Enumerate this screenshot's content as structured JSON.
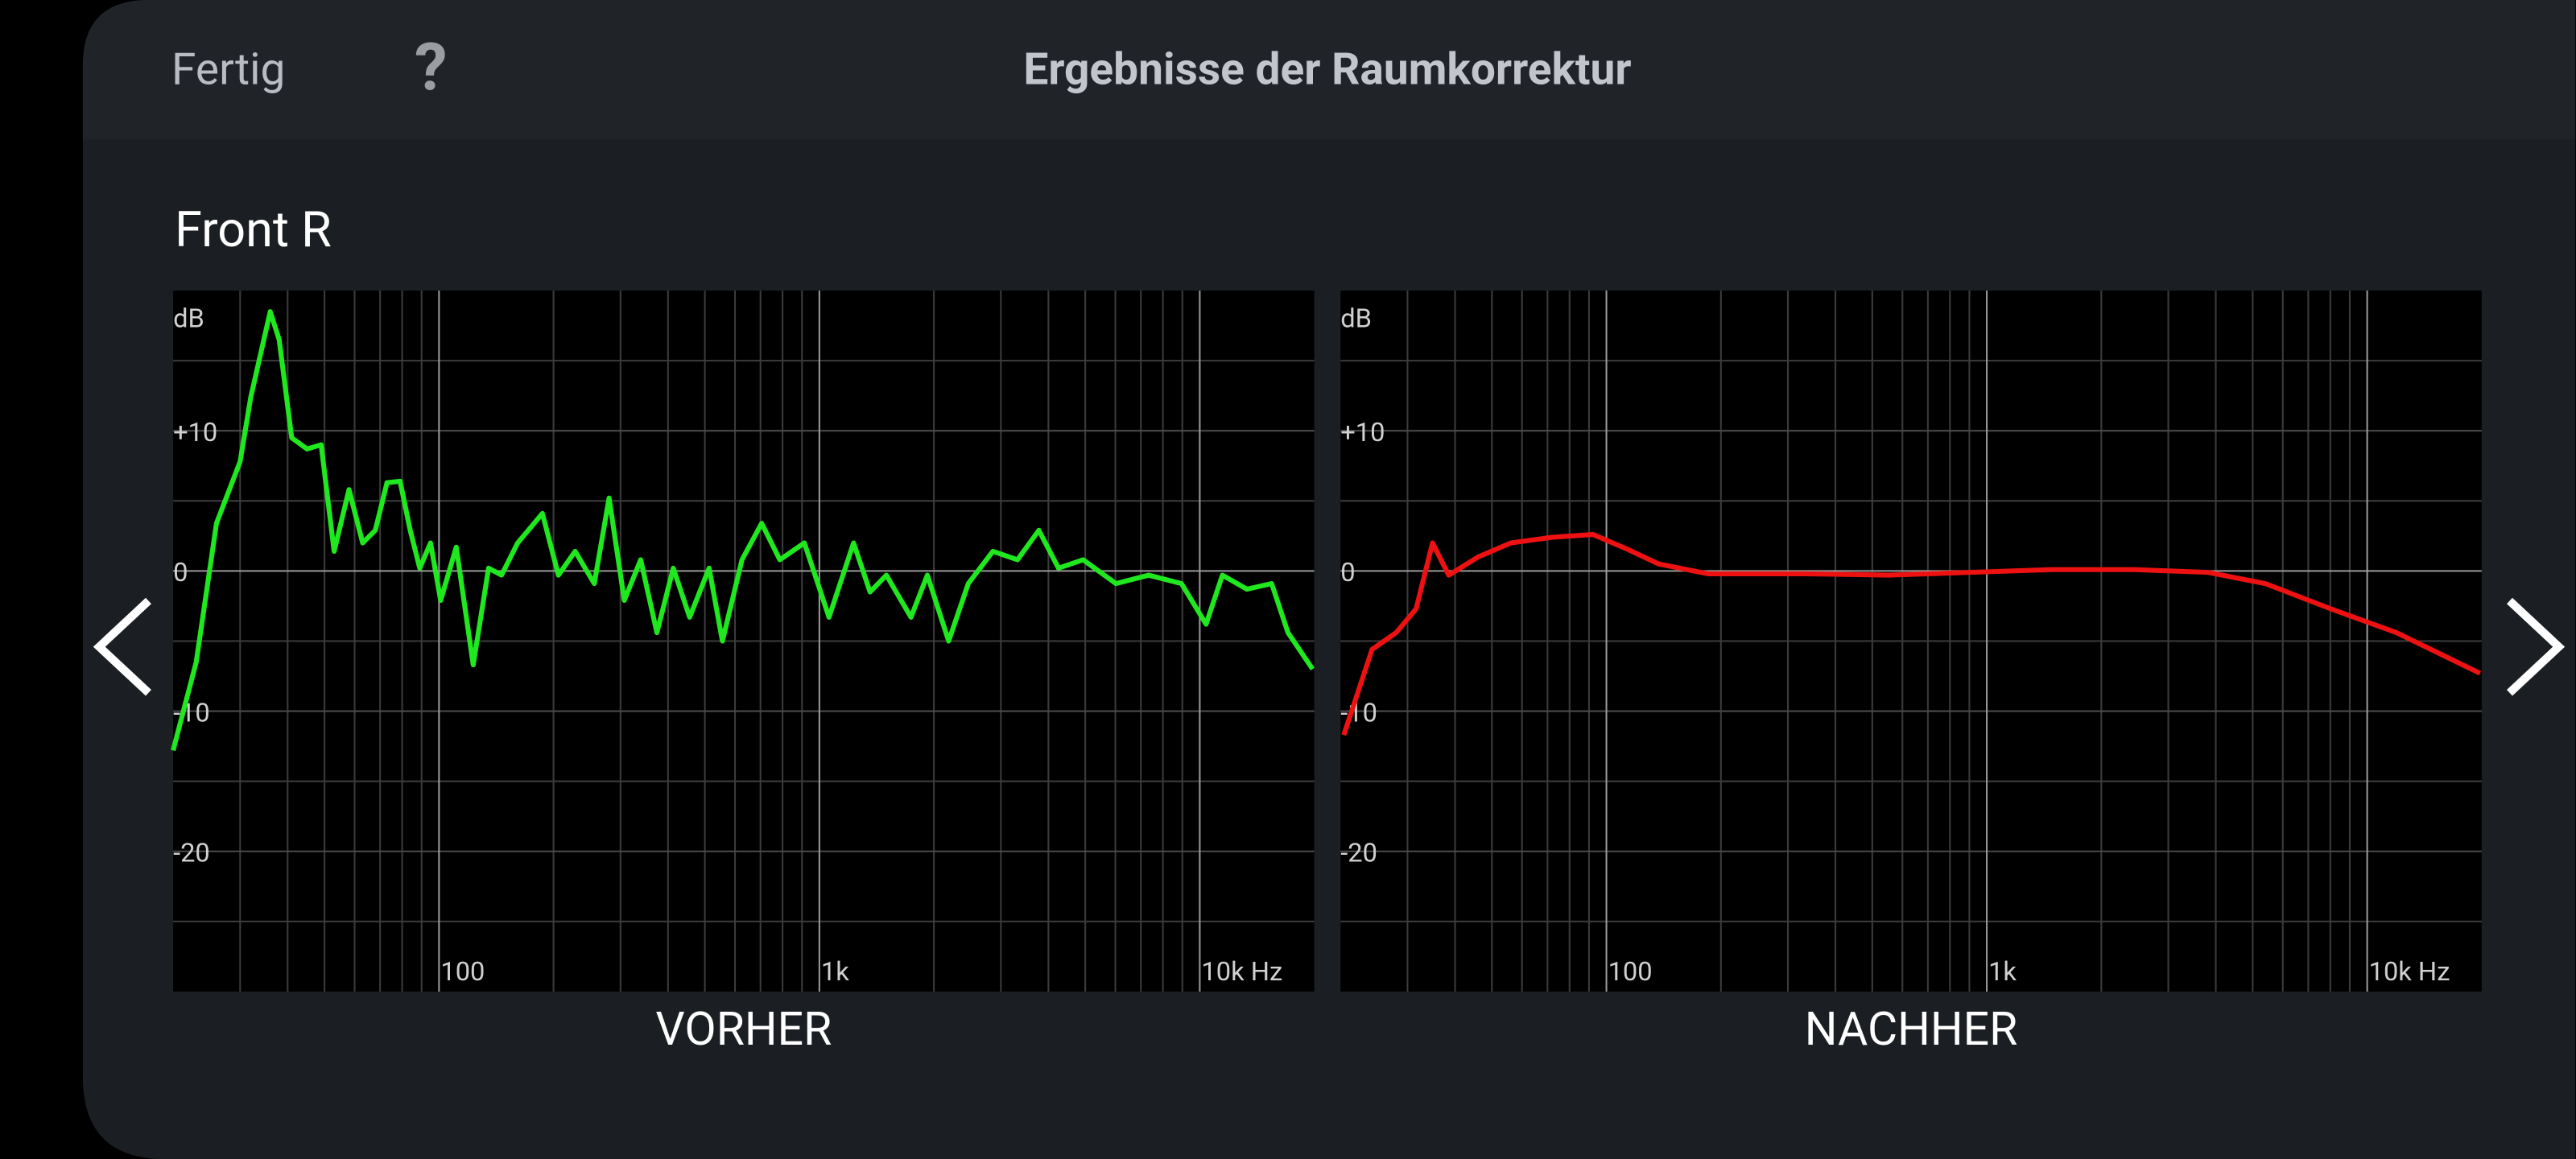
{
  "header": {
    "done": "Fertig",
    "help": "?",
    "title": "Ergebnisse der Raumkorrektur"
  },
  "section": "Front R",
  "chart_data": [
    {
      "type": "line",
      "title": "VORHER",
      "ylabel": "dB",
      "xlog": true,
      "xlim": [
        20,
        20000
      ],
      "ylim": [
        -30,
        20
      ],
      "xticks": [
        100,
        {
          "value": 1000,
          "label": "1k"
        },
        {
          "value": 10000,
          "label": "10k Hz"
        }
      ],
      "yticks": [
        {
          "value": 10,
          "label": "+10"
        },
        0,
        -10,
        -20
      ],
      "x_minor_ticks": [
        30,
        40,
        50,
        60,
        70,
        80,
        90,
        200,
        300,
        400,
        500,
        600,
        700,
        800,
        900,
        2000,
        3000,
        4000,
        5000,
        6000,
        7000,
        8000,
        9000
      ],
      "y_minor_ticks": [
        15,
        5,
        -5,
        -15,
        -25
      ],
      "series": [
        {
          "color": "#1fe81f",
          "x": [
            20,
            23,
            26,
            30,
            32,
            36,
            38,
            41,
            45,
            49,
            53,
            58,
            63,
            68,
            73,
            79,
            84,
            89,
            95,
            101,
            111,
            123,
            135,
            146,
            161,
            187,
            206,
            228,
            256,
            280,
            307,
            339,
            374,
            413,
            456,
            513,
            556,
            626,
            705,
            787,
            913,
            1060,
            1230,
            1359,
            1500,
            1741,
            1922,
            2187,
            2463,
            2859,
            3318,
            3775,
            4253,
            4935,
            6020,
            7340,
            8952,
            10390,
            11470,
            13310,
            15450,
            17060,
            19800
          ],
          "values": [
            -12.8,
            -6.5,
            3.4,
            7.8,
            12.4,
            18.5,
            16.5,
            9.5,
            8.7,
            9,
            1.4,
            5.8,
            2,
            2.9,
            6.3,
            6.4,
            2.9,
            0.2,
            2,
            -2.1,
            1.7,
            -6.7,
            0.2,
            -0.3,
            2,
            4.1,
            -0.3,
            1.4,
            -0.9,
            5.2,
            -2.1,
            0.8,
            -4.4,
            0.2,
            -3.3,
            0.2,
            -5,
            0.8,
            3.4,
            0.8,
            2,
            -3.3,
            2,
            -1.5,
            -0.3,
            -3.3,
            -0.3,
            -5,
            -0.9,
            1.4,
            0.8,
            2.9,
            0.2,
            0.8,
            -0.9,
            -0.3,
            -0.9,
            -3.8,
            -0.3,
            -1.3,
            -0.9,
            -4.4,
            -7
          ]
        }
      ]
    },
    {
      "type": "line",
      "title": "NACHHER",
      "ylabel": "dB",
      "xlog": true,
      "xlim": [
        20,
        20000
      ],
      "ylim": [
        -30,
        20
      ],
      "xticks": [
        100,
        {
          "value": 1000,
          "label": "1k"
        },
        {
          "value": 10000,
          "label": "10k Hz"
        }
      ],
      "yticks": [
        {
          "value": 10,
          "label": "+10"
        },
        0,
        -10,
        -20
      ],
      "x_minor_ticks": [
        30,
        40,
        50,
        60,
        70,
        80,
        90,
        200,
        300,
        400,
        500,
        600,
        700,
        800,
        900,
        2000,
        3000,
        4000,
        5000,
        6000,
        7000,
        8000,
        9000
      ],
      "y_minor_ticks": [
        15,
        5,
        -5,
        -15,
        -25
      ],
      "series": [
        {
          "color": "#ee1111",
          "x": [
            20.4,
            24.2,
            28,
            31.6,
            34.9,
            38.5,
            46,
            56.1,
            71.9,
            92.2,
            112.5,
            137.2,
            184.8,
            335,
            551,
            904,
            1485,
            2439,
            3813,
            5397,
            8024,
            11940,
            19800
          ],
          "values": [
            -11.7,
            -5.6,
            -4.4,
            -2.7,
            2,
            -0.3,
            1,
            2,
            2.4,
            2.6,
            1.6,
            0.5,
            -0.2,
            -0.2,
            -0.3,
            -0.1,
            0.1,
            0.1,
            -0.1,
            -0.9,
            -2.7,
            -4.4,
            -7.3
          ]
        }
      ]
    }
  ]
}
